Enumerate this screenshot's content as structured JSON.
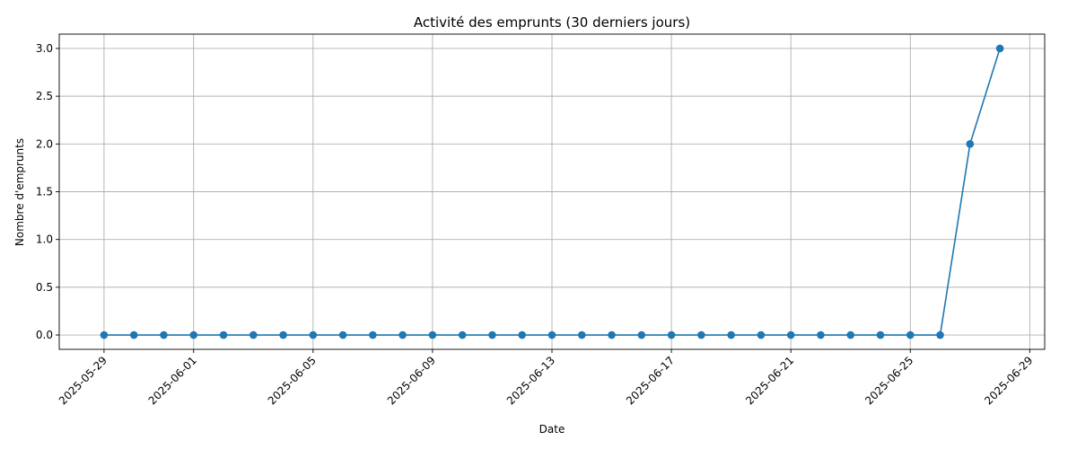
{
  "chart_data": {
    "type": "line",
    "title": "Activité des emprunts (30 derniers jours)",
    "xlabel": "Date",
    "ylabel": "Nombre d'emprunts",
    "grid": true,
    "x": [
      "2025-05-29",
      "2025-05-30",
      "2025-05-31",
      "2025-06-01",
      "2025-06-02",
      "2025-06-03",
      "2025-06-04",
      "2025-06-05",
      "2025-06-06",
      "2025-06-07",
      "2025-06-08",
      "2025-06-09",
      "2025-06-10",
      "2025-06-11",
      "2025-06-12",
      "2025-06-13",
      "2025-06-14",
      "2025-06-15",
      "2025-06-16",
      "2025-06-17",
      "2025-06-18",
      "2025-06-19",
      "2025-06-20",
      "2025-06-21",
      "2025-06-22",
      "2025-06-23",
      "2025-06-24",
      "2025-06-25",
      "2025-06-26",
      "2025-06-27",
      "2025-06-28"
    ],
    "series": [
      {
        "values": [
          0,
          0,
          0,
          0,
          0,
          0,
          0,
          0,
          0,
          0,
          0,
          0,
          0,
          0,
          0,
          0,
          0,
          0,
          0,
          0,
          0,
          0,
          0,
          0,
          0,
          0,
          0,
          0,
          0,
          2,
          3
        ],
        "color": "#1f77b4",
        "marker": "circle"
      }
    ],
    "xticks": [
      "2025-05-29",
      "2025-06-01",
      "2025-06-05",
      "2025-06-09",
      "2025-06-13",
      "2025-06-17",
      "2025-06-21",
      "2025-06-25",
      "2025-06-29"
    ],
    "yticks": [
      "0.0",
      "0.5",
      "1.0",
      "1.5",
      "2.0",
      "2.5",
      "3.0"
    ],
    "xlim": [
      "2025-05-27T12:00",
      "2025-06-29T12:00"
    ],
    "ylim": [
      -0.15,
      3.15
    ]
  }
}
